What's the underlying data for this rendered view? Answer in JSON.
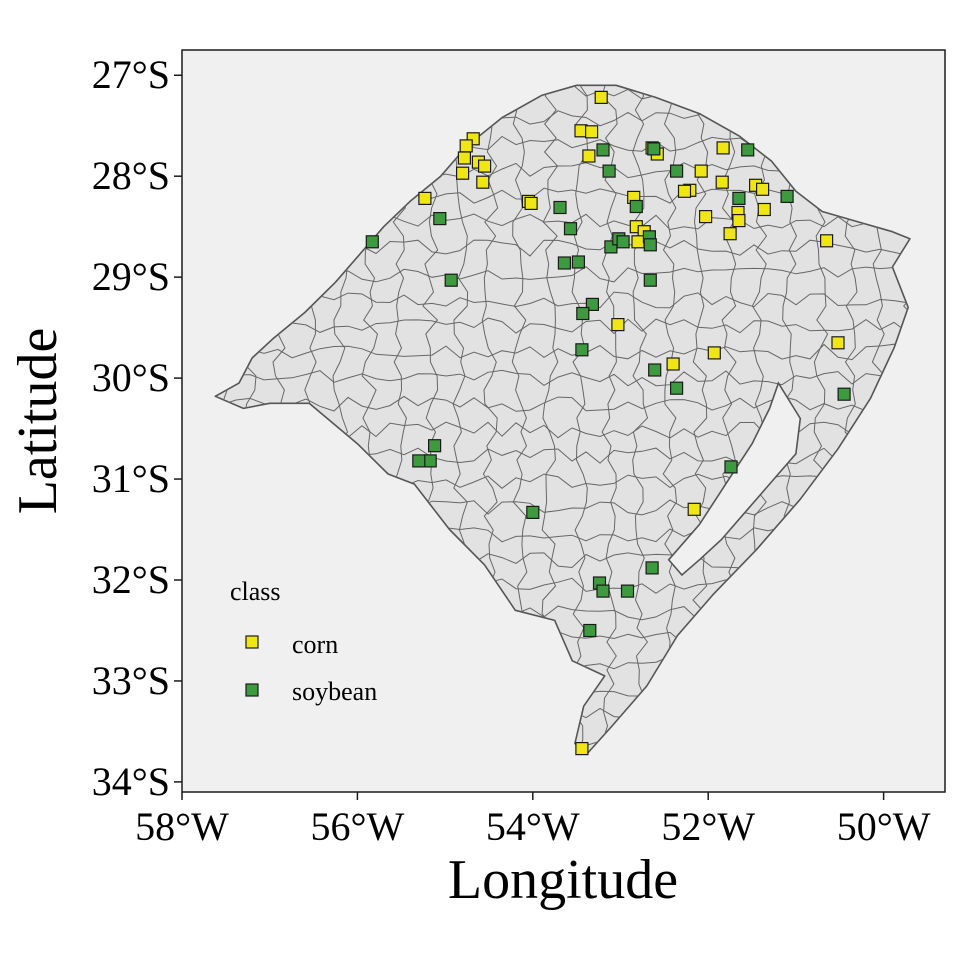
{
  "chart_data": {
    "type": "scatter",
    "title": "",
    "xlabel": "Longitude",
    "ylabel": "Latitude",
    "xlim": [
      -58,
      -49.3
    ],
    "ylim": [
      -34.1,
      -26.75
    ],
    "x_ticks": [
      -58,
      -56,
      -54,
      -52,
      -50
    ],
    "x_tick_labels": [
      "58°W",
      "56°W",
      "54°W",
      "52°W",
      "50°W"
    ],
    "y_ticks": [
      -27,
      -28,
      -29,
      -30,
      -31,
      -32,
      -33,
      -34
    ],
    "y_tick_labels": [
      "27°S",
      "28°S",
      "29°S",
      "30°S",
      "31°S",
      "32°S",
      "33°S",
      "34°S"
    ],
    "legend": {
      "title": "class",
      "position": "bottom-left",
      "entries": [
        {
          "label": "corn",
          "color": "#f0e614"
        },
        {
          "label": "soybean",
          "color": "#3e9a3e"
        }
      ]
    },
    "series": [
      {
        "name": "corn",
        "color": "#f0e614",
        "points": [
          [
            -53.22,
            -27.22
          ],
          [
            -53.45,
            -27.55
          ],
          [
            -53.33,
            -27.56
          ],
          [
            -53.36,
            -27.8
          ],
          [
            -54.68,
            -27.63
          ],
          [
            -54.76,
            -27.7
          ],
          [
            -54.78,
            -27.82
          ],
          [
            -54.62,
            -27.86
          ],
          [
            -54.55,
            -27.9
          ],
          [
            -54.8,
            -27.97
          ],
          [
            -54.57,
            -28.06
          ],
          [
            -55.23,
            -28.22
          ],
          [
            -54.05,
            -28.25
          ],
          [
            -54.02,
            -28.27
          ],
          [
            -52.58,
            -27.78
          ],
          [
            -52.64,
            -27.72
          ],
          [
            -52.08,
            -27.95
          ],
          [
            -51.83,
            -27.72
          ],
          [
            -51.84,
            -28.06
          ],
          [
            -51.46,
            -28.09
          ],
          [
            -51.38,
            -28.13
          ],
          [
            -52.21,
            -28.14
          ],
          [
            -52.27,
            -28.15
          ],
          [
            -52.03,
            -28.4
          ],
          [
            -51.66,
            -28.36
          ],
          [
            -51.36,
            -28.33
          ],
          [
            -51.65,
            -28.44
          ],
          [
            -51.75,
            -28.57
          ],
          [
            -52.85,
            -28.21
          ],
          [
            -52.82,
            -28.5
          ],
          [
            -52.73,
            -28.55
          ],
          [
            -52.8,
            -28.65
          ],
          [
            -53.03,
            -29.47
          ],
          [
            -52.4,
            -29.86
          ],
          [
            -51.93,
            -29.75
          ],
          [
            -50.65,
            -28.64
          ],
          [
            -50.52,
            -29.65
          ],
          [
            -52.16,
            -31.3
          ],
          [
            -53.44,
            -33.67
          ]
        ]
      },
      {
        "name": "soybean",
        "color": "#3e9a3e",
        "points": [
          [
            -53.2,
            -27.74
          ],
          [
            -53.13,
            -27.95
          ],
          [
            -52.62,
            -27.73
          ],
          [
            -52.36,
            -27.95
          ],
          [
            -51.55,
            -27.74
          ],
          [
            -51.65,
            -28.22
          ],
          [
            -51.1,
            -28.2
          ],
          [
            -55.83,
            -28.65
          ],
          [
            -55.06,
            -28.42
          ],
          [
            -53.69,
            -28.31
          ],
          [
            -53.57,
            -28.52
          ],
          [
            -52.82,
            -28.3
          ],
          [
            -53.11,
            -28.7
          ],
          [
            -53.02,
            -28.62
          ],
          [
            -52.97,
            -28.65
          ],
          [
            -52.67,
            -28.6
          ],
          [
            -52.66,
            -28.68
          ],
          [
            -53.64,
            -28.86
          ],
          [
            -53.48,
            -28.85
          ],
          [
            -54.93,
            -29.03
          ],
          [
            -52.66,
            -29.03
          ],
          [
            -53.32,
            -29.27
          ],
          [
            -53.43,
            -29.36
          ],
          [
            -53.44,
            -29.72
          ],
          [
            -52.61,
            -29.92
          ],
          [
            -52.36,
            -30.1
          ],
          [
            -50.45,
            -30.16
          ],
          [
            -55.12,
            -30.67
          ],
          [
            -55.17,
            -30.82
          ],
          [
            -55.3,
            -30.82
          ],
          [
            -51.74,
            -30.88
          ],
          [
            -54.0,
            -31.33
          ],
          [
            -52.64,
            -31.88
          ],
          [
            -53.24,
            -32.03
          ],
          [
            -53.2,
            -32.11
          ],
          [
            -52.92,
            -32.11
          ],
          [
            -53.35,
            -32.5
          ]
        ]
      }
    ]
  },
  "map": {
    "region": "Rio Grande do Sul municipalities",
    "fill_color": "#e2e2e2",
    "border_color": "#555555",
    "panel_color": "#f0f0f0",
    "boundary": [
      [
        -57.62,
        -30.18
      ],
      [
        -57.35,
        -30.05
      ],
      [
        -57.2,
        -29.8
      ],
      [
        -56.95,
        -29.6
      ],
      [
        -56.6,
        -29.35
      ],
      [
        -56.25,
        -29.05
      ],
      [
        -55.95,
        -28.75
      ],
      [
        -55.7,
        -28.5
      ],
      [
        -55.4,
        -28.25
      ],
      [
        -55.05,
        -28.0
      ],
      [
        -54.75,
        -27.7
      ],
      [
        -54.35,
        -27.42
      ],
      [
        -53.9,
        -27.2
      ],
      [
        -53.5,
        -27.1
      ],
      [
        -53.05,
        -27.1
      ],
      [
        -52.6,
        -27.22
      ],
      [
        -52.1,
        -27.38
      ],
      [
        -51.65,
        -27.6
      ],
      [
        -51.28,
        -27.85
      ],
      [
        -51.0,
        -28.15
      ],
      [
        -50.7,
        -28.35
      ],
      [
        -50.3,
        -28.45
      ],
      [
        -49.9,
        -28.55
      ],
      [
        -49.7,
        -28.62
      ],
      [
        -49.9,
        -28.9
      ],
      [
        -49.72,
        -29.3
      ],
      [
        -49.88,
        -29.7
      ],
      [
        -50.15,
        -30.2
      ],
      [
        -50.52,
        -30.7
      ],
      [
        -50.95,
        -31.2
      ],
      [
        -51.45,
        -31.7
      ],
      [
        -51.95,
        -32.15
      ],
      [
        -52.35,
        -32.55
      ],
      [
        -52.7,
        -33.05
      ],
      [
        -53.1,
        -33.45
      ],
      [
        -53.38,
        -33.72
      ],
      [
        -53.52,
        -33.62
      ],
      [
        -53.42,
        -33.25
      ],
      [
        -53.18,
        -32.95
      ],
      [
        -53.55,
        -32.8
      ],
      [
        -53.75,
        -32.4
      ],
      [
        -54.2,
        -32.3
      ],
      [
        -54.55,
        -31.85
      ],
      [
        -54.95,
        -31.5
      ],
      [
        -55.35,
        -31.05
      ],
      [
        -55.65,
        -30.95
      ],
      [
        -56.0,
        -30.65
      ],
      [
        -56.55,
        -30.25
      ],
      [
        -57.0,
        -30.25
      ],
      [
        -57.3,
        -30.3
      ]
    ],
    "lagoon": [
      [
        -51.2,
        -30.05
      ],
      [
        -50.95,
        -30.4
      ],
      [
        -51.0,
        -30.75
      ],
      [
        -51.25,
        -31.0
      ],
      [
        -51.55,
        -31.3
      ],
      [
        -51.85,
        -31.6
      ],
      [
        -52.1,
        -31.8
      ],
      [
        -52.3,
        -31.95
      ],
      [
        -52.45,
        -31.8
      ],
      [
        -52.1,
        -31.45
      ],
      [
        -51.8,
        -31.05
      ],
      [
        -51.5,
        -30.65
      ],
      [
        -51.3,
        -30.3
      ]
    ]
  }
}
